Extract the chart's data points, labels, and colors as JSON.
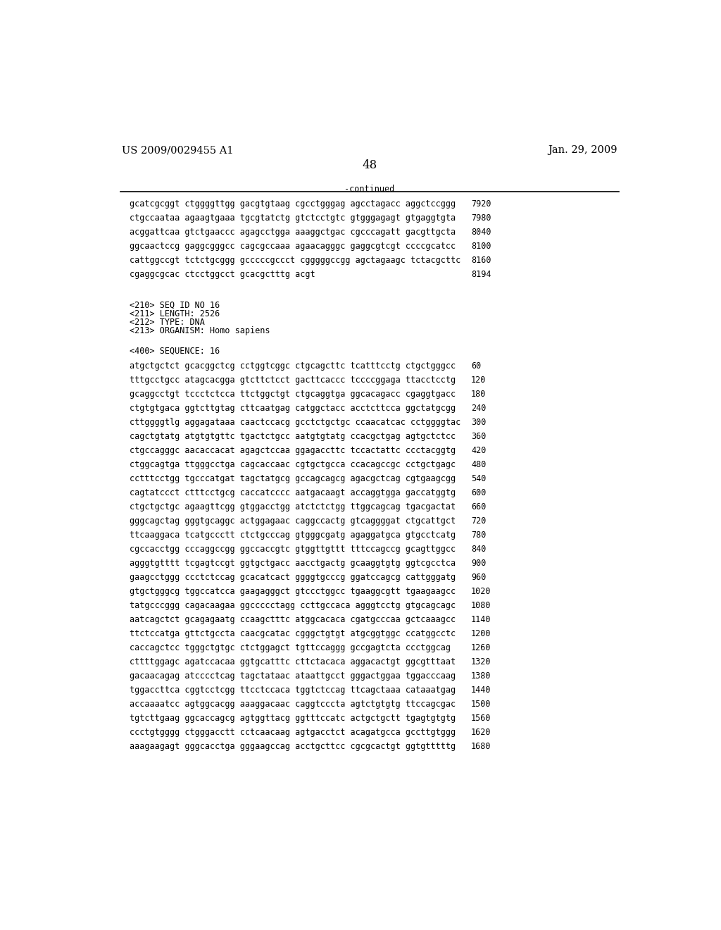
{
  "header_left": "US 2009/0029455 A1",
  "header_right": "Jan. 29, 2009",
  "page_number": "48",
  "continued_label": "-continued",
  "background_color": "#ffffff",
  "text_color": "#000000",
  "font_size_header": 10.5,
  "font_size_body": 8.5,
  "font_size_page": 12,
  "continued_lines": [
    [
      "gcatcgcggt ctggggttgg gacgtgtaag cgcctgggag agcctagacc aggctccggg",
      "7920"
    ],
    [
      "ctgccaataa agaagtgaaa tgcgtatctg gtctcctgtc gtgggagagt gtgaggtgta",
      "7980"
    ],
    [
      "acggattcaa gtctgaaccc agagcctgga aaaggctgac cgcccagatt gacgttgcta",
      "8040"
    ],
    [
      "ggcaactccg gaggcgggcc cagcgccaaa agaacagggc gaggcgtcgt ccccgcatcc",
      "8100"
    ],
    [
      "cattggccgt tctctgcggg gcccccgccct cgggggccgg agctagaagc tctacgcttc",
      "8160"
    ],
    [
      "cgaggcgcac ctcctggcct gcacgctttg acgt",
      "8194"
    ]
  ],
  "metadata_lines": [
    "<210> SEQ ID NO 16",
    "<211> LENGTH: 2526",
    "<212> TYPE: DNA",
    "<213> ORGANISM: Homo sapiens"
  ],
  "sequence_label": "<400> SEQUENCE: 16",
  "sequence_lines": [
    [
      "atgctgctct gcacggctcg cctggtcggc ctgcagcttc tcatttcctg ctgctgggcc",
      "60"
    ],
    [
      "tttgcctgcc atagcacgga gtcttctcct gacttcaccc tccccggaga ttacctcctg",
      "120"
    ],
    [
      "gcaggcctgt tccctctcca ttctggctgt ctgcaggtga ggcacagacc cgaggtgacc",
      "180"
    ],
    [
      "ctgtgtgaca ggtcttgtag cttcaatgag catggctacc acctcttcca ggctatgcgg",
      "240"
    ],
    [
      "cttggggtlg aggagataaa caactccacg gcctctgctgc ccaacatcac cctggggtac",
      "300"
    ],
    [
      "cagctgtatg atgtgtgttc tgactctgcc aatgtgtatg ccacgctgag agtgctctcc",
      "360"
    ],
    [
      "ctgccagggc aacaccacat agagctccaa ggagaccttc tccactattc ccctacggtg",
      "420"
    ],
    [
      "ctggcagtga ttgggcctga cagcaccaac cgtgctgcca ccacagccgc cctgctgagc",
      "480"
    ],
    [
      "cctttcctgg tgcccatgat tagctatgcg gccagcagcg agacgctcag cgtgaagcgg",
      "540"
    ],
    [
      "cagtatccct ctttcctgcg caccatcccc aatgacaagt accaggtgga gaccatggtg",
      "600"
    ],
    [
      "ctgctgctgc agaagttcgg gtggacctgg atctctctgg ttggcagcag tgacgactat",
      "660"
    ],
    [
      "gggcagctag gggtgcaggc actggagaac caggccactg gtcaggggat ctgcattgct",
      "720"
    ],
    [
      "ttcaaggaca tcatgccctt ctctgcccag gtgggcgatg agaggatgca gtgcctcatg",
      "780"
    ],
    [
      "cgccacctgg cccaggccgg ggccaccgtc gtggttgttt tttccagccg gcagttggcc",
      "840"
    ],
    [
      "agggtgtttt tcgagtccgt ggtgctgacc aacctgactg gcaaggtgtg ggtcgcctca",
      "900"
    ],
    [
      "gaagcctggg ccctctccag gcacatcact ggggtgcccg ggatccagcg cattgggatg",
      "960"
    ],
    [
      "gtgctgggcg tggccatcca gaagagggct gtccctggcc tgaaggcgtt tgaagaagcc",
      "1020"
    ],
    [
      "tatgcccggg cagacaagaa ggccccctagg ccttgccaca agggtcctg gtgcagcagc",
      "1080"
    ],
    [
      "aatcagctct gcagagaatg ccaagctttc atggcacaca cgatgcccaa gctcaaagcc",
      "1140"
    ],
    [
      "ttctccatga gttctgccta caacgcatac cgggctgtgt atgcggtggc ccatggcctc",
      "1200"
    ],
    [
      "caccagctcc tgggctgtgc ctctggagct tgttccaggg gccgagtcta ccctggcag",
      "1260"
    ],
    [
      "cttttggagc agatccacaa ggtgcatttc cttctacaca aggacactgt ggcgtttaat",
      "1320"
    ],
    [
      "gacaacagag atcccctcag tagctataac ataattgcct gggactggaa tggacccaag",
      "1380"
    ],
    [
      "tggaccttca cggtcctcgg ttcctccaca tggtctccag ttcagctaaa cataaatgag",
      "1440"
    ],
    [
      "accaaaatcc agtggcacgg aaaggacaac caggtcccta agtctgtgtg ttccagcgac",
      "1500"
    ],
    [
      "tgtcttgaag ggcaccagcg agtggttacg ggtttccatc actgctgctt tgagtgtgtg",
      "1560"
    ],
    [
      "ccctgtgggg ctgggacctt cctcaacaag agtgacctct acagatgcca gccttgtggg",
      "1620"
    ],
    [
      "aaagaagagt gggcacctga gggaagccag acctgcttcc cgcgcactgt ggtgtttttg",
      "1680"
    ]
  ]
}
